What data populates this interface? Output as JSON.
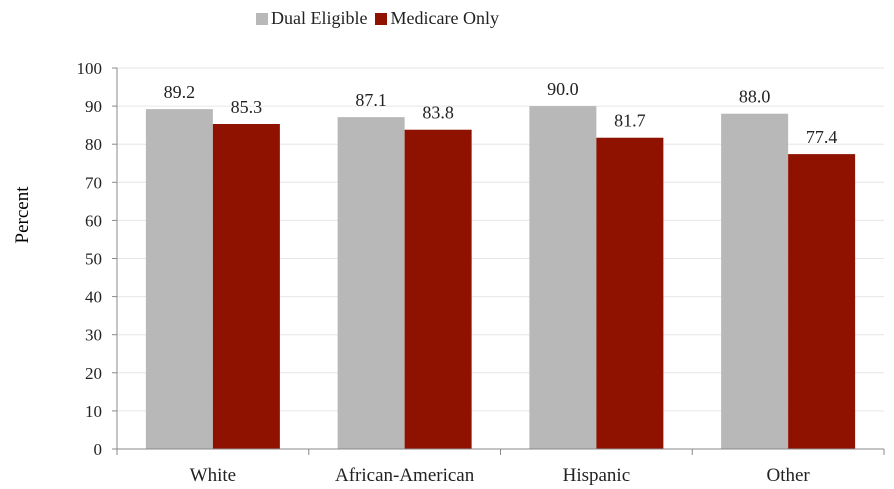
{
  "chart_data": {
    "type": "bar",
    "title": "",
    "xlabel": "",
    "ylabel": "Percent",
    "ylim": [
      0,
      100
    ],
    "yticks": [
      0,
      10,
      20,
      30,
      40,
      50,
      60,
      70,
      80,
      90,
      100
    ],
    "categories": [
      "White",
      "African-American",
      "Hispanic",
      "Other"
    ],
    "series": [
      {
        "name": "Dual Eligible",
        "values": [
          89.2,
          87.1,
          90.0,
          88.0
        ],
        "labels": [
          "89.2",
          "87.1",
          "90.0",
          "88.0"
        ],
        "color": "#b8b8b8"
      },
      {
        "name": "Medicare Only",
        "values": [
          85.3,
          83.8,
          81.7,
          77.4
        ],
        "labels": [
          "85.3",
          "83.8",
          "81.7",
          "77.4"
        ],
        "color": "#8f1200"
      }
    ],
    "legend": "top-center",
    "grid": true
  }
}
